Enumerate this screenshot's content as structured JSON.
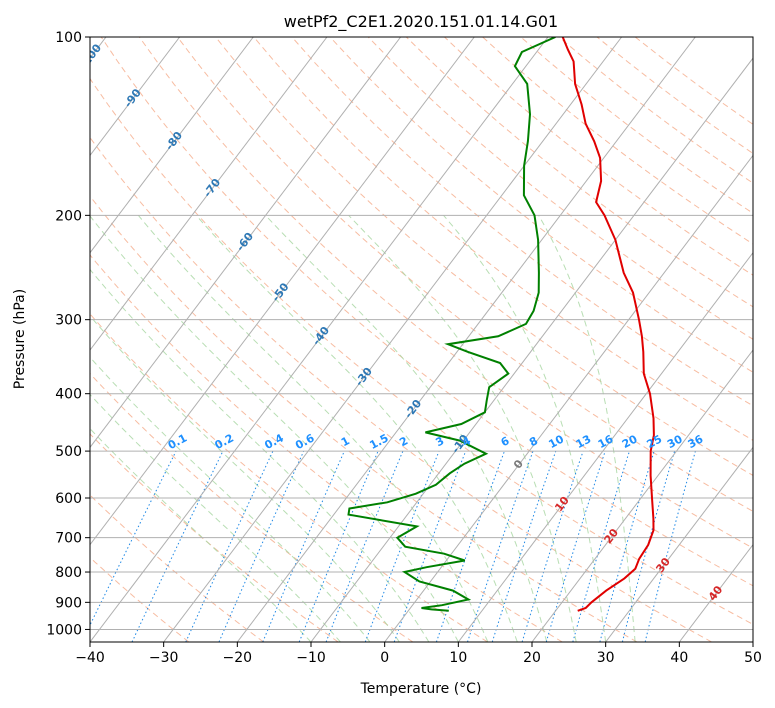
{
  "chart_data": {
    "type": "skew-t",
    "title": "wetPf2_C2E1.2020.151.01.14.G01",
    "xlabel": "Temperature (°C)",
    "ylabel": "Pressure (hPa)",
    "xlim": [
      -40,
      50
    ],
    "ylim": [
      1050,
      100
    ],
    "y_scale": "log",
    "grid": true,
    "x_ticks": [
      -40,
      -30,
      -20,
      -10,
      0,
      10,
      20,
      30,
      40,
      50
    ],
    "y_ticks": [
      100,
      200,
      300,
      400,
      500,
      600,
      700,
      800,
      900,
      1000
    ],
    "colors": {
      "temperature": "#e00000",
      "dewpoint": "#008000",
      "isotherm": "#b0b0b0",
      "dry_adiabat": "#f4a582",
      "moist_adiabat": "#a6d6a0",
      "mixing_ratio": "#1e88e5",
      "isobar": "#b0b0b0",
      "label_blue": "#2e78b5",
      "label_red": "#d62728",
      "label_gray": "#7a7a7a",
      "label_mix": "#1e90ff"
    },
    "isotherm_labels": [
      {
        "text": "-100",
        "t": -100,
        "p": 108
      },
      {
        "text": "-90",
        "t": -90,
        "p": 127
      },
      {
        "text": "-80",
        "t": -80,
        "p": 150
      },
      {
        "text": "-70",
        "t": -70,
        "p": 180
      },
      {
        "text": "-60",
        "t": -60,
        "p": 222
      },
      {
        "text": "-50",
        "t": -50,
        "p": 270
      },
      {
        "text": "-40",
        "t": -40,
        "p": 320
      },
      {
        "text": "-30",
        "t": -30,
        "p": 375
      },
      {
        "text": "-20",
        "t": -20,
        "p": 425
      },
      {
        "text": "-10",
        "t": -10,
        "p": 487
      },
      {
        "text": "0",
        "t": 0,
        "p": 527
      },
      {
        "text": "10",
        "t": 10,
        "p": 615
      },
      {
        "text": "20",
        "t": 20,
        "p": 697
      },
      {
        "text": "30",
        "t": 30,
        "p": 780
      },
      {
        "text": "40",
        "t": 40,
        "p": 870
      }
    ],
    "mixing_ratio_labels": [
      "0.1",
      "0.2",
      "0.4",
      "0.6",
      "1",
      "1.5",
      "2",
      "3",
      "4",
      "6",
      "8",
      "10",
      "13",
      "16",
      "20",
      "25",
      "30",
      "36"
    ],
    "temperature_profile": [
      {
        "p": 930,
        "t": 23.0
      },
      {
        "p": 920,
        "t": 23.8
      },
      {
        "p": 900,
        "t": 24.0
      },
      {
        "p": 860,
        "t": 24.8
      },
      {
        "p": 820,
        "t": 26.0
      },
      {
        "p": 790,
        "t": 26.5
      },
      {
        "p": 760,
        "t": 26.0
      },
      {
        "p": 720,
        "t": 25.8
      },
      {
        "p": 680,
        "t": 25.0
      },
      {
        "p": 650,
        "t": 23.8
      },
      {
        "p": 600,
        "t": 21.5
      },
      {
        "p": 550,
        "t": 19.0
      },
      {
        "p": 500,
        "t": 16.5
      },
      {
        "p": 470,
        "t": 15.3
      },
      {
        "p": 440,
        "t": 13.5
      },
      {
        "p": 400,
        "t": 10.5
      },
      {
        "p": 370,
        "t": 7.6
      },
      {
        "p": 340,
        "t": 5.3
      },
      {
        "p": 320,
        "t": 3.5
      },
      {
        "p": 300,
        "t": 1.4
      },
      {
        "p": 270,
        "t": -2.2
      },
      {
        "p": 250,
        "t": -5.5
      },
      {
        "p": 220,
        "t": -10.0
      },
      {
        "p": 200,
        "t": -14.0
      },
      {
        "p": 190,
        "t": -16.5
      },
      {
        "p": 175,
        "t": -18.0
      },
      {
        "p": 160,
        "t": -20.5
      },
      {
        "p": 150,
        "t": -23.0
      },
      {
        "p": 140,
        "t": -26.0
      },
      {
        "p": 130,
        "t": -28.5
      },
      {
        "p": 120,
        "t": -31.5
      },
      {
        "p": 110,
        "t": -34.0
      },
      {
        "p": 105,
        "t": -36.0
      },
      {
        "p": 100,
        "t": -38.0
      }
    ],
    "dewpoint_profile": [
      {
        "p": 930,
        "t": 5.5
      },
      {
        "p": 925,
        "t": 3.0
      },
      {
        "p": 920,
        "t": 1.5
      },
      {
        "p": 910,
        "t": 4.0
      },
      {
        "p": 890,
        "t": 7.0
      },
      {
        "p": 860,
        "t": 4.0
      },
      {
        "p": 830,
        "t": -1.5
      },
      {
        "p": 800,
        "t": -4.5
      },
      {
        "p": 785,
        "t": -2.0
      },
      {
        "p": 765,
        "t": 2.5
      },
      {
        "p": 745,
        "t": -1.0
      },
      {
        "p": 725,
        "t": -7.0
      },
      {
        "p": 700,
        "t": -9.0
      },
      {
        "p": 670,
        "t": -7.5
      },
      {
        "p": 640,
        "t": -18.0
      },
      {
        "p": 625,
        "t": -18.5
      },
      {
        "p": 610,
        "t": -14.0
      },
      {
        "p": 590,
        "t": -11.0
      },
      {
        "p": 570,
        "t": -9.2
      },
      {
        "p": 545,
        "t": -8.5
      },
      {
        "p": 525,
        "t": -7.5
      },
      {
        "p": 505,
        "t": -5.6
      },
      {
        "p": 480,
        "t": -10.5
      },
      {
        "p": 465,
        "t": -16.0
      },
      {
        "p": 450,
        "t": -12.0
      },
      {
        "p": 430,
        "t": -10.0
      },
      {
        "p": 410,
        "t": -11.0
      },
      {
        "p": 390,
        "t": -12.0
      },
      {
        "p": 370,
        "t": -10.8
      },
      {
        "p": 355,
        "t": -13.0
      },
      {
        "p": 340,
        "t": -18.5
      },
      {
        "p": 330,
        "t": -22.0
      },
      {
        "p": 320,
        "t": -16.0
      },
      {
        "p": 305,
        "t": -13.5
      },
      {
        "p": 290,
        "t": -13.8
      },
      {
        "p": 270,
        "t": -15.0
      },
      {
        "p": 250,
        "t": -17.0
      },
      {
        "p": 220,
        "t": -20.5
      },
      {
        "p": 200,
        "t": -23.5
      },
      {
        "p": 185,
        "t": -27.0
      },
      {
        "p": 165,
        "t": -30.0
      },
      {
        "p": 150,
        "t": -32.0
      },
      {
        "p": 135,
        "t": -34.5
      },
      {
        "p": 120,
        "t": -38.0
      },
      {
        "p": 112,
        "t": -41.5
      },
      {
        "p": 106,
        "t": -42.0
      },
      {
        "p": 100,
        "t": -39.0
      }
    ]
  }
}
